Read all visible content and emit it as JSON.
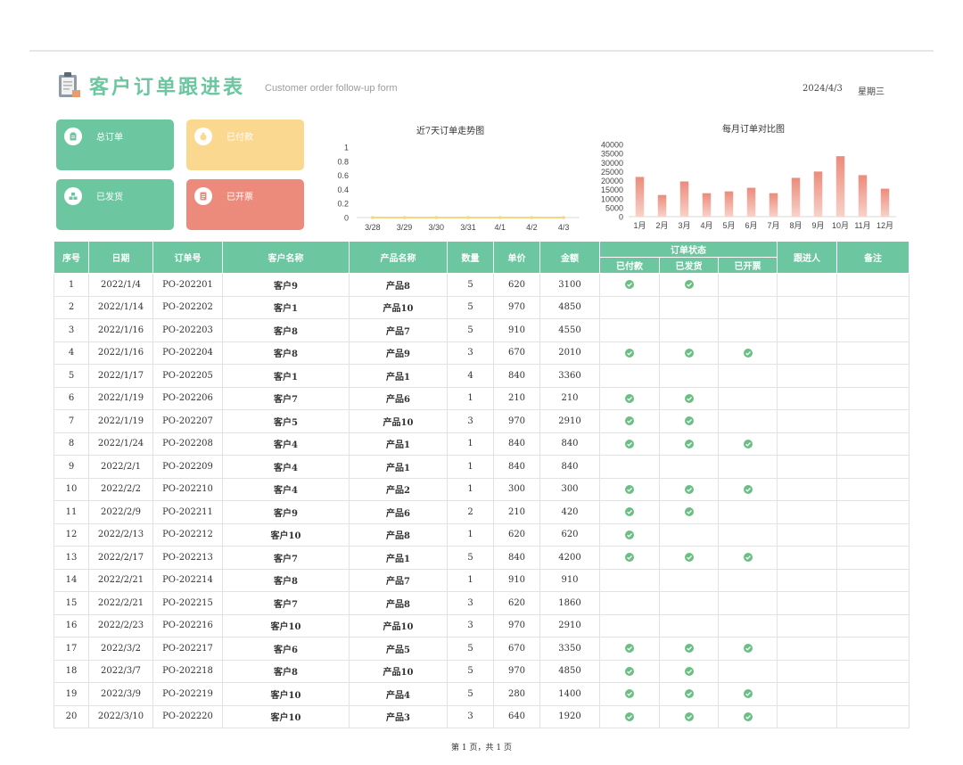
{
  "header": {
    "title": "客户订单跟进表",
    "subtitle": "Customer order follow-up form",
    "date": "2024/4/3",
    "weekday": "星期三"
  },
  "cards": [
    {
      "label": "总订单",
      "icon": "clipboard-icon",
      "color": "#6cc6a0"
    },
    {
      "label": "已付款",
      "icon": "money-bag-icon",
      "color": "#fbd88f"
    },
    {
      "label": "已发货",
      "icon": "boxes-icon",
      "color": "#6cc6a0"
    },
    {
      "label": "已开票",
      "icon": "invoice-icon",
      "color": "#ec8b7b"
    }
  ],
  "chart_data": [
    {
      "type": "line",
      "title": "近7天订单走势图",
      "categories": [
        "3/28",
        "3/29",
        "3/30",
        "3/31",
        "4/1",
        "4/2",
        "4/3"
      ],
      "values": [
        0,
        0,
        0,
        0,
        0,
        0,
        0
      ],
      "yticks": [
        "0",
        "0.2",
        "0.4",
        "0.6",
        "0.8",
        "1"
      ],
      "ylim": [
        0,
        1
      ],
      "color": "#f5d77e"
    },
    {
      "type": "bar",
      "title": "每月订单对比图",
      "categories": [
        "1月",
        "2月",
        "3月",
        "4月",
        "5月",
        "6月",
        "7月",
        "8月",
        "9月",
        "10月",
        "11月",
        "12月"
      ],
      "values": [
        22000,
        12000,
        19500,
        13000,
        14000,
        16000,
        13000,
        21500,
        25000,
        33500,
        23000,
        15500
      ],
      "yticks": [
        "0",
        "5000",
        "10000",
        "15000",
        "20000",
        "25000",
        "30000",
        "35000",
        "40000"
      ],
      "ylim": [
        0,
        40000
      ],
      "color": "#ec8b7b"
    }
  ],
  "table": {
    "headers": {
      "index": "序号",
      "date": "日期",
      "order_no": "订单号",
      "customer": "客户名称",
      "product": "产品名称",
      "qty": "数量",
      "price": "单价",
      "amount": "金额",
      "status": "订单状态",
      "paid": "已付款",
      "shipped": "已发货",
      "invoiced": "已开票",
      "follower": "跟进人",
      "remark": "备注"
    },
    "rows": [
      {
        "index": "1",
        "date": "2022/1/4",
        "order_no": "PO-202201",
        "customer": "客户9",
        "product": "产品8",
        "qty": "5",
        "price": "620",
        "amount": "3100",
        "paid": true,
        "shipped": true,
        "invoiced": false
      },
      {
        "index": "2",
        "date": "2022/1/14",
        "order_no": "PO-202202",
        "customer": "客户1",
        "product": "产品10",
        "qty": "5",
        "price": "970",
        "amount": "4850",
        "paid": false,
        "shipped": false,
        "invoiced": false
      },
      {
        "index": "3",
        "date": "2022/1/16",
        "order_no": "PO-202203",
        "customer": "客户8",
        "product": "产品7",
        "qty": "5",
        "price": "910",
        "amount": "4550",
        "paid": false,
        "shipped": false,
        "invoiced": false
      },
      {
        "index": "4",
        "date": "2022/1/16",
        "order_no": "PO-202204",
        "customer": "客户8",
        "product": "产品9",
        "qty": "3",
        "price": "670",
        "amount": "2010",
        "paid": true,
        "shipped": true,
        "invoiced": true
      },
      {
        "index": "5",
        "date": "2022/1/17",
        "order_no": "PO-202205",
        "customer": "客户1",
        "product": "产品1",
        "qty": "4",
        "price": "840",
        "amount": "3360",
        "paid": false,
        "shipped": false,
        "invoiced": false
      },
      {
        "index": "6",
        "date": "2022/1/19",
        "order_no": "PO-202206",
        "customer": "客户7",
        "product": "产品6",
        "qty": "1",
        "price": "210",
        "amount": "210",
        "paid": true,
        "shipped": true,
        "invoiced": false
      },
      {
        "index": "7",
        "date": "2022/1/19",
        "order_no": "PO-202207",
        "customer": "客户5",
        "product": "产品10",
        "qty": "3",
        "price": "970",
        "amount": "2910",
        "paid": true,
        "shipped": true,
        "invoiced": false
      },
      {
        "index": "8",
        "date": "2022/1/24",
        "order_no": "PO-202208",
        "customer": "客户4",
        "product": "产品1",
        "qty": "1",
        "price": "840",
        "amount": "840",
        "paid": true,
        "shipped": true,
        "invoiced": true
      },
      {
        "index": "9",
        "date": "2022/2/1",
        "order_no": "PO-202209",
        "customer": "客户4",
        "product": "产品1",
        "qty": "1",
        "price": "840",
        "amount": "840",
        "paid": false,
        "shipped": false,
        "invoiced": false
      },
      {
        "index": "10",
        "date": "2022/2/2",
        "order_no": "PO-202210",
        "customer": "客户4",
        "product": "产品2",
        "qty": "1",
        "price": "300",
        "amount": "300",
        "paid": true,
        "shipped": true,
        "invoiced": true
      },
      {
        "index": "11",
        "date": "2022/2/9",
        "order_no": "PO-202211",
        "customer": "客户9",
        "product": "产品6",
        "qty": "2",
        "price": "210",
        "amount": "420",
        "paid": true,
        "shipped": true,
        "invoiced": false
      },
      {
        "index": "12",
        "date": "2022/2/13",
        "order_no": "PO-202212",
        "customer": "客户10",
        "product": "产品8",
        "qty": "1",
        "price": "620",
        "amount": "620",
        "paid": true,
        "shipped": false,
        "invoiced": false
      },
      {
        "index": "13",
        "date": "2022/2/17",
        "order_no": "PO-202213",
        "customer": "客户7",
        "product": "产品1",
        "qty": "5",
        "price": "840",
        "amount": "4200",
        "paid": true,
        "shipped": true,
        "invoiced": true
      },
      {
        "index": "14",
        "date": "2022/2/21",
        "order_no": "PO-202214",
        "customer": "客户8",
        "product": "产品7",
        "qty": "1",
        "price": "910",
        "amount": "910",
        "paid": false,
        "shipped": false,
        "invoiced": false
      },
      {
        "index": "15",
        "date": "2022/2/21",
        "order_no": "PO-202215",
        "customer": "客户7",
        "product": "产品8",
        "qty": "3",
        "price": "620",
        "amount": "1860",
        "paid": false,
        "shipped": false,
        "invoiced": false
      },
      {
        "index": "16",
        "date": "2022/2/23",
        "order_no": "PO-202216",
        "customer": "客户10",
        "product": "产品10",
        "qty": "3",
        "price": "970",
        "amount": "2910",
        "paid": false,
        "shipped": false,
        "invoiced": false
      },
      {
        "index": "17",
        "date": "2022/3/2",
        "order_no": "PO-202217",
        "customer": "客户6",
        "product": "产品5",
        "qty": "5",
        "price": "670",
        "amount": "3350",
        "paid": true,
        "shipped": true,
        "invoiced": true
      },
      {
        "index": "18",
        "date": "2022/3/7",
        "order_no": "PO-202218",
        "customer": "客户8",
        "product": "产品10",
        "qty": "5",
        "price": "970",
        "amount": "4850",
        "paid": true,
        "shipped": true,
        "invoiced": false
      },
      {
        "index": "19",
        "date": "2022/3/9",
        "order_no": "PO-202219",
        "customer": "客户10",
        "product": "产品4",
        "qty": "5",
        "price": "280",
        "amount": "1400",
        "paid": true,
        "shipped": true,
        "invoiced": true
      },
      {
        "index": "20",
        "date": "2022/3/10",
        "order_no": "PO-202220",
        "customer": "客户10",
        "product": "产品3",
        "qty": "3",
        "price": "640",
        "amount": "1920",
        "paid": true,
        "shipped": true,
        "invoiced": true
      }
    ],
    "check_color": "#6cbf84"
  },
  "footer": {
    "page_text": "第 1 页，共 1 页"
  }
}
